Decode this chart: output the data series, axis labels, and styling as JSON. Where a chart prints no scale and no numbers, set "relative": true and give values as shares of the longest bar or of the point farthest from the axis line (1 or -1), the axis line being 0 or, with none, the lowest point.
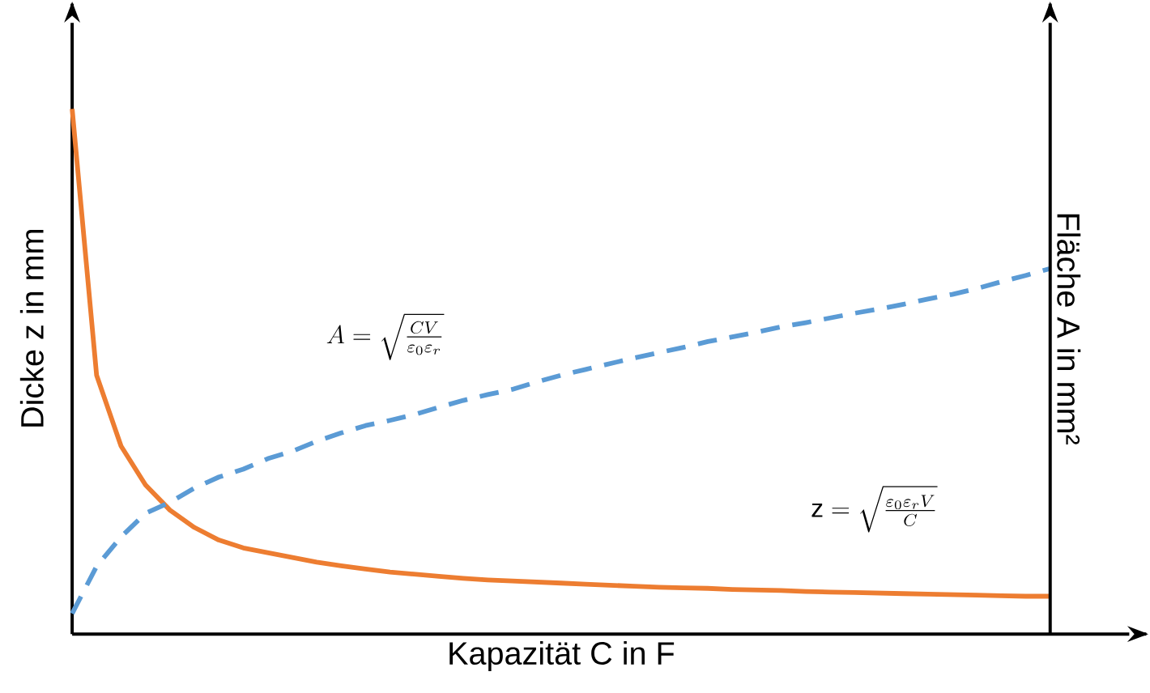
{
  "chart_data": {
    "type": "line",
    "relative": true,
    "xlabel": "Kapazität C in F",
    "ylabel": "Dicke z in mm",
    "y2label": "Fläche A in mm²",
    "categories": [
      null,
      null,
      null,
      null,
      null,
      null,
      null,
      null,
      null,
      null,
      null,
      null,
      null,
      null,
      null,
      null,
      null,
      null,
      null,
      null,
      null,
      null,
      null,
      null,
      null,
      null,
      null,
      null,
      null,
      null,
      null,
      null,
      null,
      null,
      null,
      null,
      null,
      null,
      null,
      null,
      null
    ],
    "series": [
      {
        "color": "#ed7d31",
        "line_style": "solid",
        "values": [
          1.0,
          0.493,
          0.358,
          0.284,
          0.236,
          0.203,
          0.179,
          0.164,
          0.155,
          0.146,
          0.137,
          0.13,
          0.124,
          0.118,
          0.114,
          0.11,
          0.106,
          0.103,
          0.101,
          0.099,
          0.097,
          0.095,
          0.093,
          0.091,
          0.089,
          0.088,
          0.087,
          0.085,
          0.084,
          0.083,
          0.081,
          0.08,
          0.079,
          0.078,
          0.077,
          0.076,
          0.075,
          0.074,
          0.073,
          0.072,
          0.072
        ]
      },
      {
        "color": "#5b9bd5",
        "line_style": "dashed",
        "values": [
          0.039,
          0.129,
          0.185,
          0.23,
          0.251,
          0.278,
          0.299,
          0.314,
          0.334,
          0.348,
          0.367,
          0.383,
          0.397,
          0.407,
          0.418,
          0.432,
          0.445,
          0.456,
          0.466,
          0.48,
          0.493,
          0.504,
          0.515,
          0.526,
          0.536,
          0.546,
          0.557,
          0.566,
          0.575,
          0.585,
          0.593,
          0.602,
          0.611,
          0.619,
          0.628,
          0.638,
          0.647,
          0.658,
          0.671,
          0.683,
          0.696
        ]
      }
    ],
    "annotations": [
      "A=\\sqrt{\\frac{CV}{\\varepsilon_0\\varepsilon_r}}",
      "\\mathrm{z}=\\sqrt{\\frac{\\varepsilon_0\\varepsilon_r V}{C}}"
    ]
  }
}
